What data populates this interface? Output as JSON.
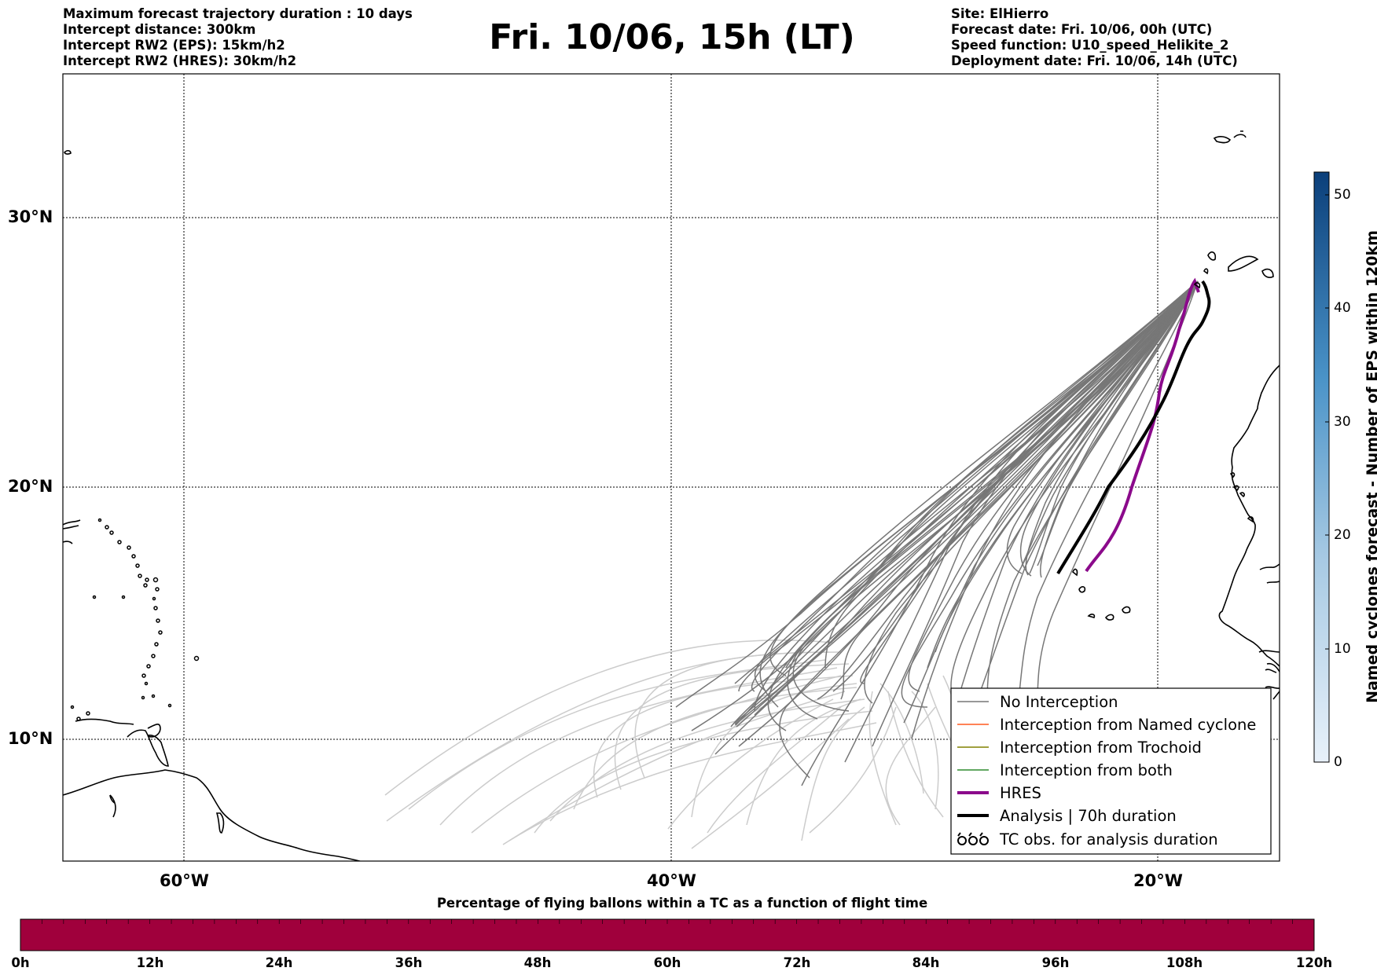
{
  "header_left": [
    "Maximum forecast trajectory duration : 10 days",
    "Intercept distance: 300km",
    "Intercept RW2 (EPS):  15km/h2",
    "Intercept RW2 (HRES): 30km/h2"
  ],
  "title": "Fri. 10/06, 15h (LT)",
  "header_right": [
    "Site: ElHierro",
    "Forecast date: Fri. 10/06, 00h (UTC)",
    "Speed function: U10_speed_Helikite_2",
    "Deployment date: Fri. 10/06, 14h (UTC)"
  ],
  "map": {
    "lat_labels": [
      "30°N",
      "20°N",
      "10°N"
    ],
    "lon_labels": [
      "60°W",
      "40°W",
      "20°W"
    ],
    "grid": "dotted",
    "colors": {
      "no_interception": "#777777",
      "late_ensemble": "#cccccc",
      "named_cyclone": "#ff5a1f",
      "trochoid": "#808000",
      "both": "#2e8b2e",
      "hres": "#8b0a8b",
      "analysis": "#000000"
    }
  },
  "legend": {
    "placement": "lower-right",
    "items": [
      {
        "label": "No Interception",
        "symbol": "thin-line",
        "color": "#777777"
      },
      {
        "label": "Interception from Named cyclone",
        "symbol": "thin-line",
        "color": "#ff5a1f"
      },
      {
        "label": "Interception from Trochoid",
        "symbol": "thin-line",
        "color": "#808000"
      },
      {
        "label": "Interception from both",
        "symbol": "thin-line",
        "color": "#2e8b2e"
      },
      {
        "label": "HRES",
        "symbol": "thick-line",
        "color": "#8b0a8b"
      },
      {
        "label": "Analysis | 70h duration",
        "symbol": "thick-line",
        "color": "#000000"
      },
      {
        "label": "TC obs. for analysis duration",
        "symbol": "cyclone-icons",
        "color": "#000000"
      }
    ]
  },
  "colorbar_right": {
    "label": "Named cyclones forecast - Number of EPS within 120km",
    "ticks": [
      "0",
      "10",
      "20",
      "30",
      "40",
      "50"
    ],
    "range": [
      0,
      52
    ]
  },
  "colorbar_bottom": {
    "title": "Percentage of flying ballons within a TC as a function of flight time",
    "ticks": [
      "0h",
      "12h",
      "24h",
      "36h",
      "48h",
      "60h",
      "72h",
      "84h",
      "96h",
      "108h",
      "120h"
    ],
    "fill_color": "#a0003c"
  }
}
